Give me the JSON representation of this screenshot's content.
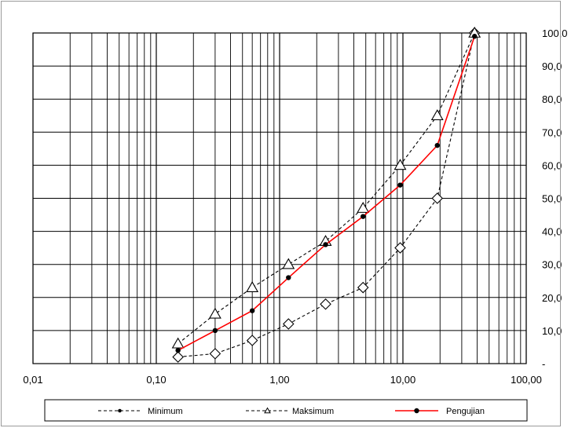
{
  "chart_data": {
    "type": "line",
    "x_scale": "log",
    "xlim": [
      0.01,
      100
    ],
    "ylim": [
      0,
      100
    ],
    "grid": true,
    "legend_position": "bottom",
    "x_tick_labels": [
      "0,01",
      "0,10",
      "1,00",
      "10,00",
      "100,00"
    ],
    "y_tick_labels": [
      "-",
      "10,0",
      "20,0",
      "30,0",
      "40,0",
      "50,0",
      "60,0",
      "70,0",
      "80,0",
      "90,0",
      "100,0"
    ],
    "series": [
      {
        "name": "Minimum",
        "color": "#000000",
        "line": "dashed",
        "marker": "diamond",
        "x": [
          0.15,
          0.3,
          0.6,
          1.18,
          2.36,
          4.75,
          9.5,
          19,
          38.1
        ],
        "y": [
          2,
          3,
          7,
          12,
          18,
          23,
          35,
          50,
          100
        ]
      },
      {
        "name": "Maksimum",
        "color": "#000000",
        "line": "dashed",
        "marker": "triangle",
        "x": [
          0.15,
          0.3,
          0.6,
          1.18,
          2.36,
          4.75,
          9.5,
          19,
          38.1
        ],
        "y": [
          6,
          15,
          23,
          30,
          37,
          47,
          60,
          75,
          100
        ]
      },
      {
        "name": "Pengujian",
        "color": "#ff0000",
        "line": "solid",
        "marker": "dot",
        "x": [
          0.15,
          0.3,
          0.6,
          1.18,
          2.36,
          4.75,
          9.5,
          19,
          38.1
        ],
        "y": [
          4,
          10,
          16,
          26,
          36,
          44.5,
          54,
          66,
          99
        ]
      }
    ]
  }
}
